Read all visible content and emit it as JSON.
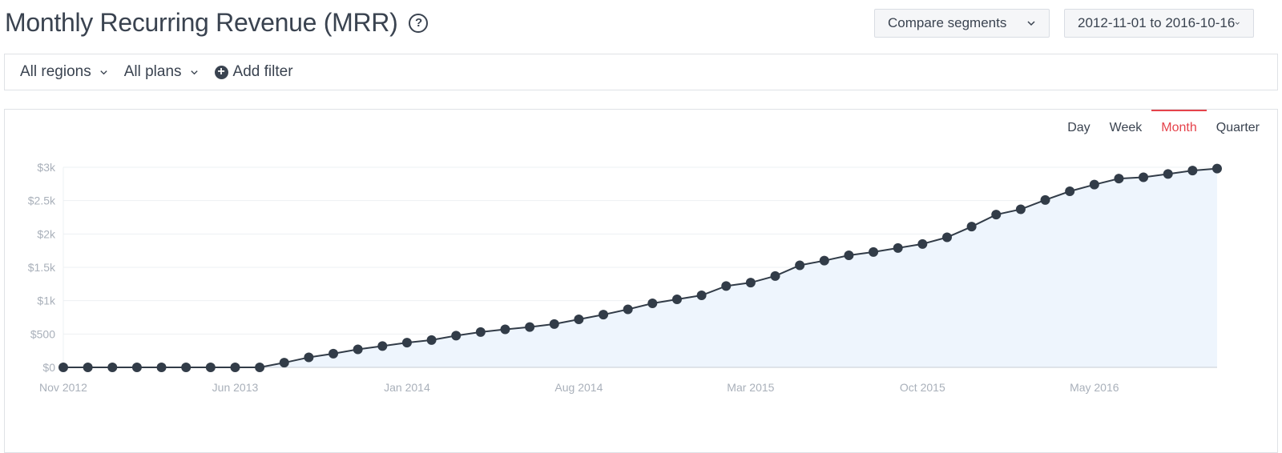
{
  "header": {
    "title": "Monthly Recurring Revenue (MRR)",
    "help_glyph": "?",
    "compare_label": "Compare segments",
    "date_range": "2012-11-01 to 2016-10-16"
  },
  "filters": {
    "regions": "All regions",
    "plans": "All plans",
    "add_filter": "Add filter"
  },
  "period_tabs": [
    {
      "label": "Day",
      "active": false
    },
    {
      "label": "Week",
      "active": false
    },
    {
      "label": "Month",
      "active": true
    },
    {
      "label": "Quarter",
      "active": false
    }
  ],
  "chart_data": {
    "type": "area",
    "y_tick_labels": [
      "$0",
      "$500",
      "$1k",
      "$1.5k",
      "$2k",
      "$2.5k",
      "$3k"
    ],
    "x_tick_labels": [
      "Nov 2012",
      "Jun 2013",
      "Jan 2014",
      "Aug 2014",
      "Mar 2015",
      "Oct 2015",
      "May 2016"
    ],
    "ylim": [
      0,
      3000
    ],
    "grid": true,
    "legend": "none",
    "colors": {
      "line": "#323c48",
      "fill": "#eef5fd",
      "grid": "#edf0f3",
      "axis": "#c7ccd3"
    },
    "series": [
      {
        "x": [
          "2012-11",
          "2012-12",
          "2013-01",
          "2013-02",
          "2013-03",
          "2013-04",
          "2013-05",
          "2013-06",
          "2013-07",
          "2013-08",
          "2013-09",
          "2013-10",
          "2013-11",
          "2013-12",
          "2014-01",
          "2014-02",
          "2014-03",
          "2014-04",
          "2014-05",
          "2014-06",
          "2014-07",
          "2014-08",
          "2014-09",
          "2014-10",
          "2014-11",
          "2014-12",
          "2015-01",
          "2015-02",
          "2015-03",
          "2015-04",
          "2015-05",
          "2015-06",
          "2015-07",
          "2015-08",
          "2015-09",
          "2015-10",
          "2015-11",
          "2015-12",
          "2016-01",
          "2016-02",
          "2016-03",
          "2016-04",
          "2016-05",
          "2016-06",
          "2016-07",
          "2016-08",
          "2016-09",
          "2016-10"
        ],
        "values": [
          0,
          0,
          0,
          0,
          0,
          0,
          0,
          0,
          0,
          70,
          150,
          205,
          270,
          320,
          370,
          410,
          475,
          530,
          570,
          605,
          650,
          720,
          790,
          870,
          960,
          1020,
          1080,
          1220,
          1270,
          1370,
          1530,
          1600,
          1680,
          1730,
          1790,
          1850,
          1950,
          2110,
          2290,
          2370,
          2510,
          2640,
          2740,
          2830,
          2850,
          2900,
          2950,
          2980
        ]
      }
    ]
  }
}
